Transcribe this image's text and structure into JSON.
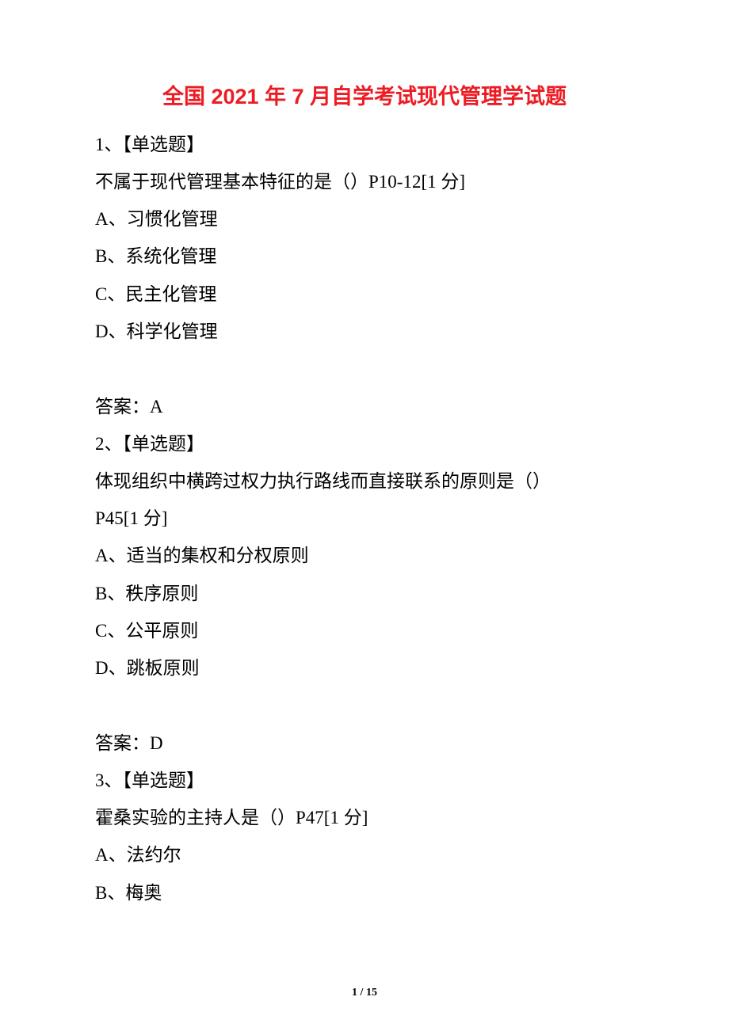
{
  "title": "全国 2021 年 7 月自学考试现代管理学试题",
  "questions": [
    {
      "header": "1、【单选题】",
      "stem": "不属于现代管理基本特征的是（）P10-12[1 分]",
      "options": [
        "A、习惯化管理",
        "B、系统化管理",
        "C、民主化管理",
        "D、科学化管理"
      ],
      "answer": "答案：A"
    },
    {
      "header": "2、【单选题】",
      "stem_line1": "体现组织中横跨过权力执行路线而直接联系的原则是（）",
      "stem_line2": "P45[1 分]",
      "options": [
        "A、适当的集权和分权原则",
        "B、秩序原则",
        "C、公平原则",
        "D、跳板原则"
      ],
      "answer": "答案：D"
    },
    {
      "header": "3、【单选题】",
      "stem": "霍桑实验的主持人是（）P47[1 分]",
      "options": [
        "A、法约尔",
        "B、梅奥"
      ]
    }
  ],
  "page_number": "1 / 15",
  "colors": {
    "title_color": "#ed1c24",
    "text_color": "#000000",
    "background": "#ffffff"
  },
  "typography": {
    "title_fontsize": 27,
    "body_fontsize": 23,
    "page_number_fontsize": 14,
    "line_height": 2.05
  }
}
